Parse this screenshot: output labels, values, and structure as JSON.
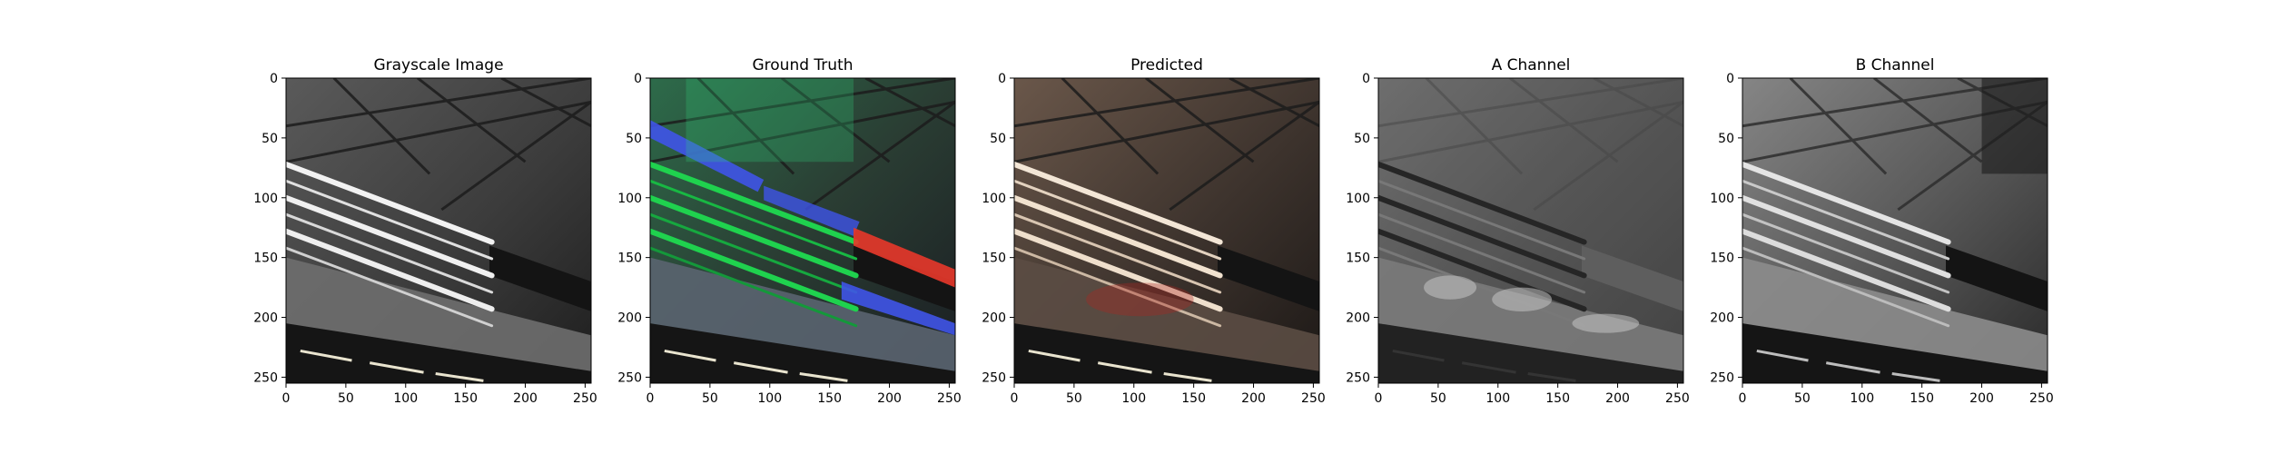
{
  "figure": {
    "panels": [
      {
        "title": "Grayscale Image",
        "variant": "grayscale"
      },
      {
        "title": "Ground Truth",
        "variant": "ground_truth"
      },
      {
        "title": "Predicted",
        "variant": "predicted"
      },
      {
        "title": "A Channel",
        "variant": "a_channel"
      },
      {
        "title": "B Channel",
        "variant": "b_channel"
      }
    ]
  },
  "chart_data": {
    "type": "image_grid",
    "panel_count": 5,
    "xlim": [
      0,
      255
    ],
    "ylim": [
      255,
      0
    ],
    "x_ticks": [
      0,
      50,
      100,
      150,
      200,
      250
    ],
    "y_ticks": [
      0,
      50,
      100,
      150,
      200,
      250
    ],
    "grid": false,
    "colors": {
      "grayscale_bg": "#3a3a3a",
      "ground_truth_green": "#1fd24e",
      "ground_truth_blue": "#3f54e8",
      "ground_truth_red": "#e8372a",
      "predicted_tint": "#6b4a3a",
      "tick_color": "#000000",
      "frame_color": "#000000"
    }
  }
}
